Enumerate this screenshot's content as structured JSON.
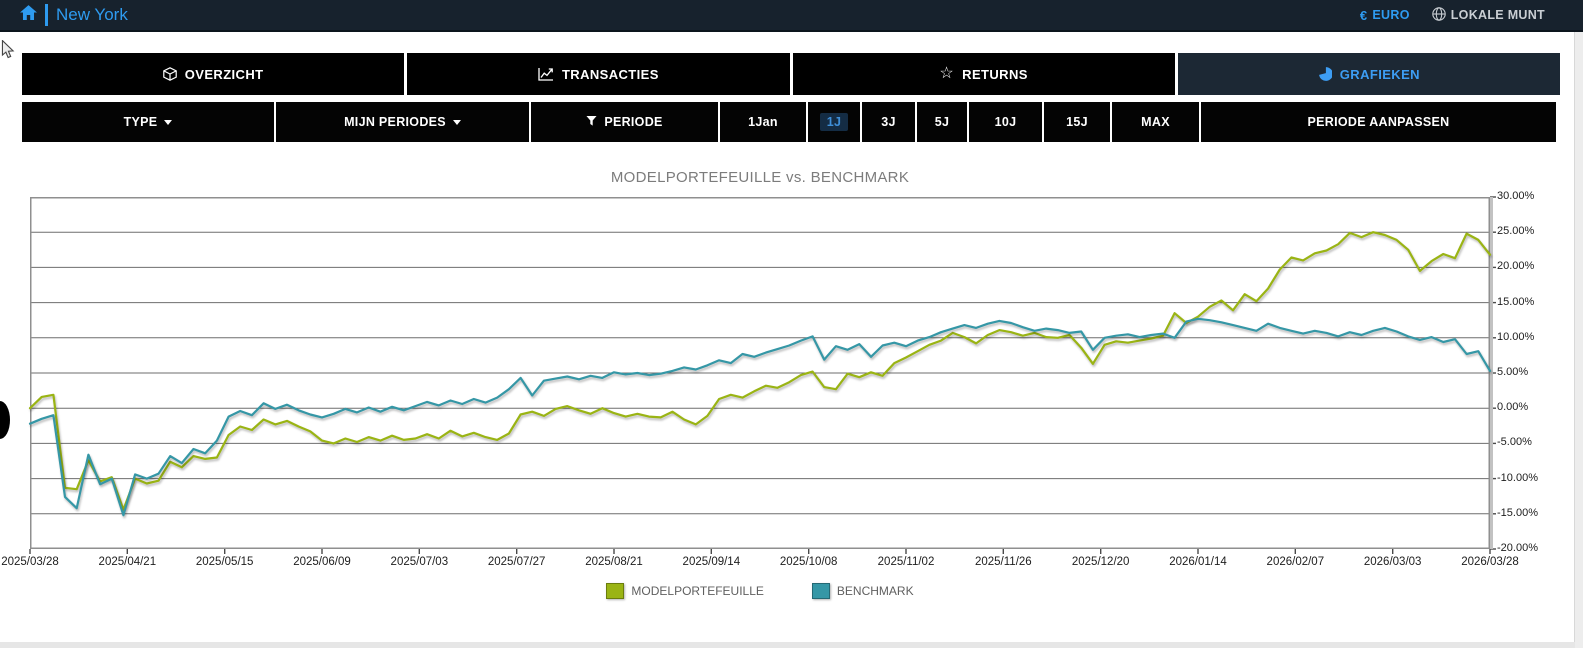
{
  "navbar": {
    "title": "New York",
    "home_icon": "home-icon",
    "euro_symbol": "€",
    "currency_eur_label": "EURO",
    "globe_icon": "globe-icon",
    "currency_local_label": "LOKALE MUNT"
  },
  "tabs": [
    {
      "label": "OVERZICHT",
      "icon": "cube-icon",
      "active": false
    },
    {
      "label": "TRANSACTIES",
      "icon": "chart-line-icon",
      "active": false
    },
    {
      "label": "RETURNS",
      "icon": "star-icon",
      "active": false
    },
    {
      "label": "GRAFIEKEN",
      "icon": "pie-chart-icon",
      "active": true
    }
  ],
  "filterbar": {
    "type_label": "TYPE",
    "mijn_periodes_label": "MIJN PERIODES",
    "periode_label": "PERIODE",
    "funnel_icon": "funnel-icon",
    "caret_icon": "caret-down-icon",
    "periods": [
      {
        "label": "1Jan",
        "selected": false
      },
      {
        "label": "1J",
        "selected": true
      },
      {
        "label": "3J",
        "selected": false
      },
      {
        "label": "5J",
        "selected": false
      },
      {
        "label": "10J",
        "selected": false
      },
      {
        "label": "15J",
        "selected": false
      },
      {
        "label": "MAX",
        "selected": false
      }
    ],
    "aanpassen_label": "PERIODE AANPASSEN"
  },
  "colors": {
    "accent_blue": "#2e9bf0",
    "navbar_bg": "#17222d",
    "tab_bg": "#000000",
    "active_tab_bg": "#1c2834",
    "series_green": "#9ab414",
    "series_teal": "#3597a6"
  },
  "chart_data": {
    "type": "line",
    "title": "MODELPORTEFEUILLE vs. BENCHMARK",
    "grid": true,
    "legend_position": "bottom",
    "ylim": [
      -20,
      30
    ],
    "y_ticks": [
      30,
      25,
      20,
      15,
      10,
      5,
      0,
      -5,
      -10,
      -15,
      -20
    ],
    "y_tick_labels": [
      "30.00%",
      "25.00%",
      "20.00%",
      "15.00%",
      "10.00%",
      "5.00%",
      "0.00%",
      "-5.00%",
      "-10.00%",
      "-15.00%",
      "-20.00%"
    ],
    "x_labels": [
      "2025/03/28",
      "2025/04/21",
      "2025/05/15",
      "2025/06/09",
      "2025/07/03",
      "2025/07/27",
      "2025/08/21",
      "2025/09/14",
      "2025/10/08",
      "2025/11/02",
      "2025/11/26",
      "2025/12/20",
      "2026/01/14",
      "2026/02/07",
      "2026/03/03",
      "2026/03/28"
    ],
    "series": [
      {
        "name": "MODELPORTEFEUILLE",
        "color": "#9ab414",
        "values": [
          0.0,
          1.6,
          1.9,
          -11.3,
          -11.5,
          -7.4,
          -10.4,
          -9.8,
          -14.4,
          -10.0,
          -10.7,
          -10.3,
          -7.6,
          -8.4,
          -6.8,
          -7.2,
          -7.0,
          -3.8,
          -2.6,
          -3.1,
          -1.6,
          -2.3,
          -1.8,
          -2.6,
          -3.3,
          -4.6,
          -5.0,
          -4.3,
          -4.8,
          -4.1,
          -4.6,
          -3.9,
          -4.5,
          -4.3,
          -3.7,
          -4.3,
          -3.2,
          -4.0,
          -3.5,
          -4.1,
          -4.5,
          -3.6,
          -0.9,
          -0.5,
          -1.1,
          -0.1,
          0.3,
          -0.3,
          -0.8,
          0.0,
          -0.7,
          -1.2,
          -0.8,
          -1.2,
          -1.3,
          -0.5,
          -1.6,
          -2.3,
          -1.1,
          1.3,
          1.9,
          1.5,
          2.4,
          3.2,
          2.9,
          3.7,
          4.7,
          5.2,
          3.0,
          2.7,
          4.9,
          4.4,
          5.1,
          4.6,
          6.4,
          7.2,
          8.1,
          9.0,
          9.6,
          10.7,
          10.1,
          9.2,
          10.4,
          11.1,
          10.8,
          10.3,
          10.7,
          10.1,
          10.0,
          10.4,
          8.6,
          6.3,
          9.0,
          9.5,
          9.3,
          9.6,
          9.9,
          10.3,
          13.5,
          12.1,
          13.0,
          14.4,
          15.3,
          13.9,
          16.2,
          15.2,
          17.0,
          19.7,
          21.4,
          21.0,
          22.0,
          22.4,
          23.3,
          24.9,
          24.3,
          25.0,
          24.6,
          23.9,
          22.5,
          19.5,
          20.9,
          21.9,
          21.3,
          24.8,
          23.9,
          21.8
        ]
      },
      {
        "name": "BENCHMARK",
        "color": "#3597a6",
        "values": [
          -2.2,
          -1.5,
          -1.0,
          -12.6,
          -14.2,
          -6.6,
          -10.8,
          -10.0,
          -15.2,
          -9.4,
          -10.0,
          -9.3,
          -6.8,
          -7.8,
          -5.8,
          -6.4,
          -4.6,
          -1.2,
          -0.4,
          -1.0,
          0.7,
          -0.1,
          0.5,
          -0.3,
          -0.9,
          -1.3,
          -0.8,
          -0.1,
          -0.6,
          0.1,
          -0.5,
          0.2,
          -0.3,
          0.3,
          0.9,
          0.4,
          1.1,
          0.6,
          1.3,
          0.8,
          1.5,
          2.7,
          4.3,
          1.8,
          3.9,
          4.2,
          4.5,
          4.1,
          4.6,
          4.3,
          5.1,
          4.8,
          5.0,
          4.7,
          4.9,
          5.3,
          5.8,
          5.5,
          6.1,
          6.8,
          6.4,
          7.7,
          7.3,
          7.9,
          8.4,
          8.9,
          9.6,
          10.2,
          6.9,
          8.8,
          8.3,
          9.1,
          7.3,
          8.9,
          9.3,
          8.8,
          9.6,
          10.1,
          10.8,
          11.3,
          11.8,
          11.4,
          12.0,
          12.4,
          12.1,
          11.5,
          11.0,
          11.3,
          11.1,
          10.7,
          10.9,
          8.3,
          10.0,
          10.3,
          10.5,
          10.1,
          10.4,
          10.6,
          10.0,
          12.3,
          12.7,
          12.5,
          12.2,
          11.8,
          11.4,
          11.0,
          12.0,
          11.4,
          11.0,
          10.6,
          11.0,
          10.7,
          10.2,
          10.8,
          10.4,
          11.0,
          11.4,
          10.9,
          10.2,
          9.7,
          10.1,
          9.4,
          9.8,
          7.7,
          8.1,
          5.3
        ]
      }
    ]
  }
}
